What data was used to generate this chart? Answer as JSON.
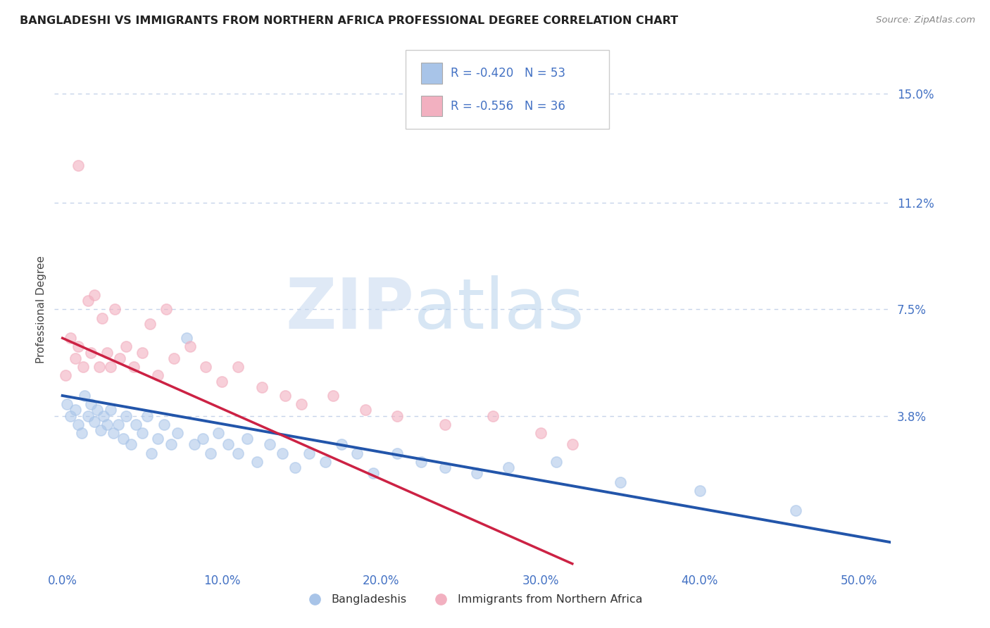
{
  "title": "BANGLADESHI VS IMMIGRANTS FROM NORTHERN AFRICA PROFESSIONAL DEGREE CORRELATION CHART",
  "source": "Source: ZipAtlas.com",
  "xlabel_vals": [
    0.0,
    10.0,
    20.0,
    30.0,
    40.0,
    50.0
  ],
  "ylabel": "Professional Degree",
  "ylabel_ticks_labels": [
    "3.8%",
    "7.5%",
    "11.2%",
    "15.0%"
  ],
  "ylabel_ticks_vals": [
    3.8,
    7.5,
    11.2,
    15.0
  ],
  "xlim": [
    -0.5,
    52.0
  ],
  "ylim": [
    -1.5,
    16.5
  ],
  "legend_r1": "-0.420",
  "legend_n1": "53",
  "legend_r2": "-0.556",
  "legend_n2": "36",
  "blue_scatter_color": "#a8c4e8",
  "pink_scatter_color": "#f2b0c0",
  "blue_line_color": "#2255aa",
  "pink_line_color": "#cc2244",
  "title_color": "#222222",
  "label_color": "#4472c4",
  "grid_color": "#c0cfe8",
  "background_color": "#ffffff",
  "watermark_zip": "ZIP",
  "watermark_atlas": "atlas",
  "blue_intercept": 4.5,
  "blue_slope": -0.098,
  "pink_intercept": 6.5,
  "pink_slope": -0.245,
  "bangladeshi_x": [
    0.3,
    0.5,
    0.8,
    1.0,
    1.2,
    1.4,
    1.6,
    1.8,
    2.0,
    2.2,
    2.4,
    2.6,
    2.8,
    3.0,
    3.2,
    3.5,
    3.8,
    4.0,
    4.3,
    4.6,
    5.0,
    5.3,
    5.6,
    6.0,
    6.4,
    6.8,
    7.2,
    7.8,
    8.3,
    8.8,
    9.3,
    9.8,
    10.4,
    11.0,
    11.6,
    12.2,
    13.0,
    13.8,
    14.6,
    15.5,
    16.5,
    17.5,
    18.5,
    19.5,
    21.0,
    22.5,
    24.0,
    26.0,
    28.0,
    31.0,
    35.0,
    40.0,
    46.0
  ],
  "bangladeshi_y": [
    4.2,
    3.8,
    4.0,
    3.5,
    3.2,
    4.5,
    3.8,
    4.2,
    3.6,
    4.0,
    3.3,
    3.8,
    3.5,
    4.0,
    3.2,
    3.5,
    3.0,
    3.8,
    2.8,
    3.5,
    3.2,
    3.8,
    2.5,
    3.0,
    3.5,
    2.8,
    3.2,
    6.5,
    2.8,
    3.0,
    2.5,
    3.2,
    2.8,
    2.5,
    3.0,
    2.2,
    2.8,
    2.5,
    2.0,
    2.5,
    2.2,
    2.8,
    2.5,
    1.8,
    2.5,
    2.2,
    2.0,
    1.8,
    2.0,
    2.2,
    1.5,
    1.2,
    0.5
  ],
  "northern_africa_x": [
    0.2,
    0.5,
    0.8,
    1.0,
    1.0,
    1.3,
    1.6,
    1.8,
    2.0,
    2.3,
    2.5,
    2.8,
    3.0,
    3.3,
    3.6,
    4.0,
    4.5,
    5.0,
    5.5,
    6.0,
    6.5,
    7.0,
    8.0,
    9.0,
    10.0,
    11.0,
    12.5,
    14.0,
    15.0,
    17.0,
    19.0,
    21.0,
    24.0,
    27.0,
    30.0,
    32.0
  ],
  "northern_africa_y": [
    5.2,
    6.5,
    5.8,
    12.5,
    6.2,
    5.5,
    7.8,
    6.0,
    8.0,
    5.5,
    7.2,
    6.0,
    5.5,
    7.5,
    5.8,
    6.2,
    5.5,
    6.0,
    7.0,
    5.2,
    7.5,
    5.8,
    6.2,
    5.5,
    5.0,
    5.5,
    4.8,
    4.5,
    4.2,
    4.5,
    4.0,
    3.8,
    3.5,
    3.8,
    3.2,
    2.8
  ]
}
